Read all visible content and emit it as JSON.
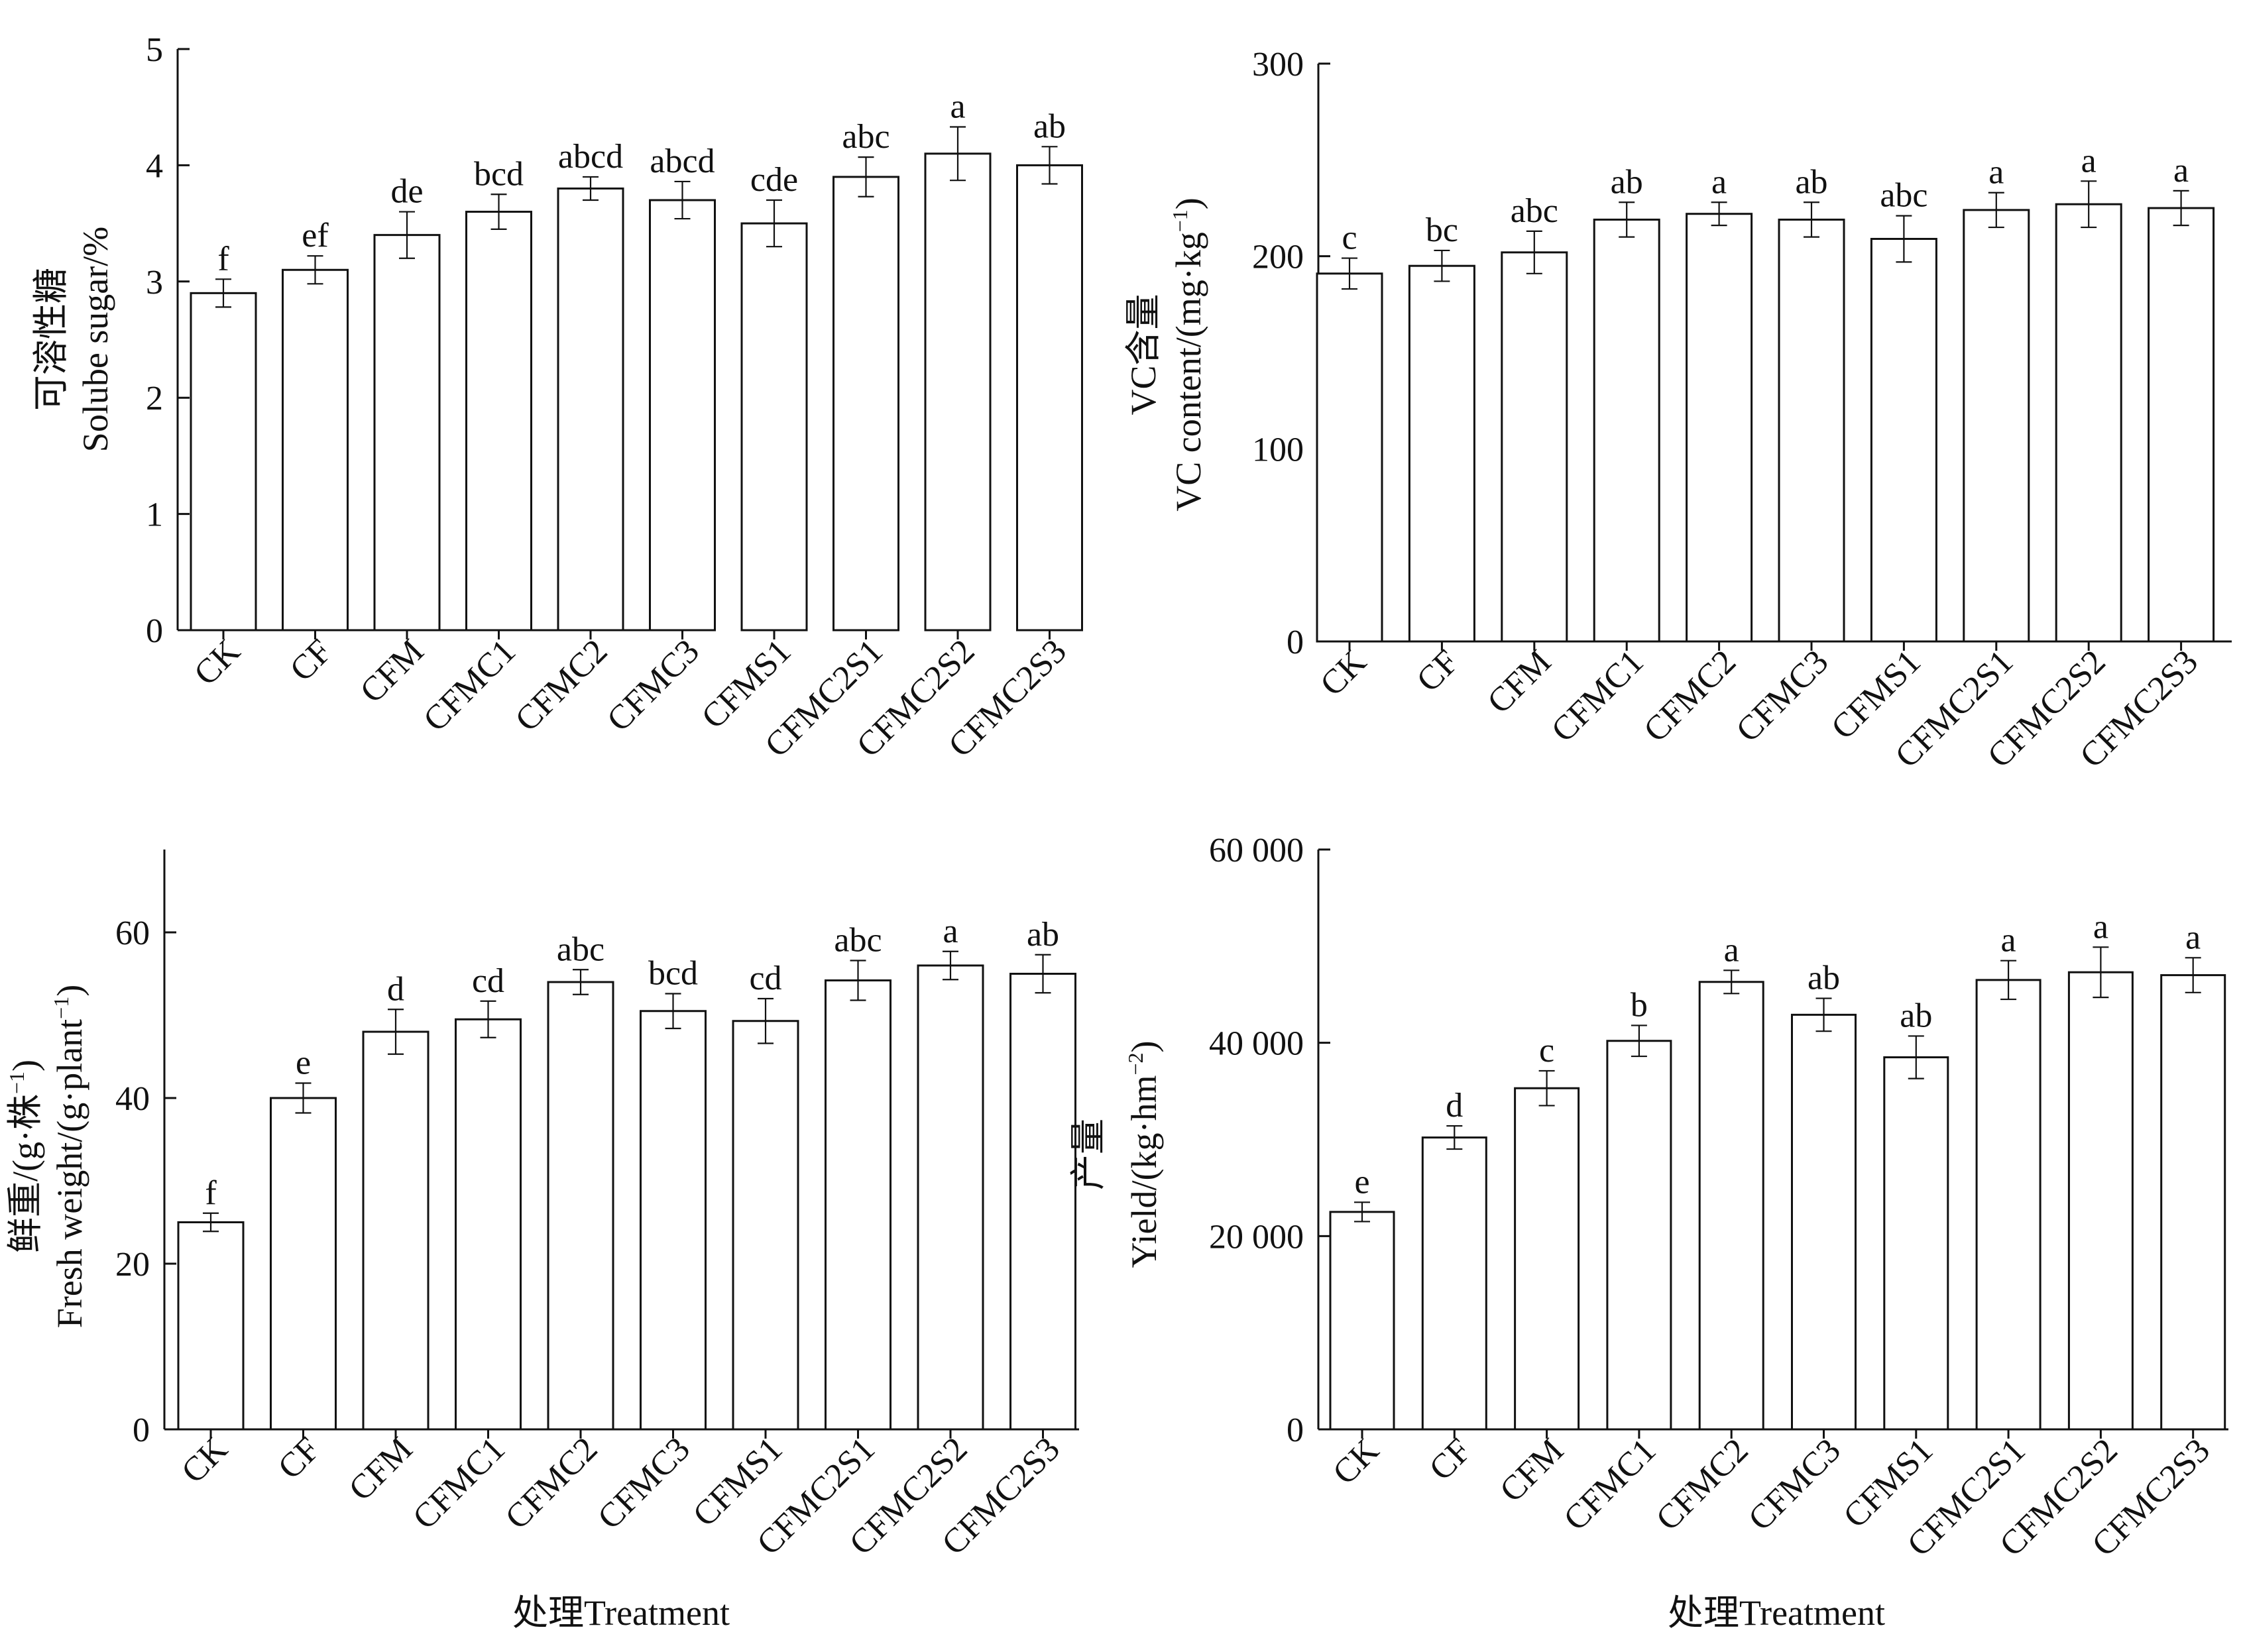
{
  "chart_data": [
    {
      "id": "soluble-sugar",
      "type": "bar",
      "categories": [
        "CK",
        "CF",
        "CFM",
        "CFMC1",
        "CFMC2",
        "CFMC3",
        "CFMS1",
        "CFMC2S1",
        "CFMC2S2",
        "CFMC2S3"
      ],
      "values": [
        2.9,
        3.1,
        3.4,
        3.6,
        3.8,
        3.7,
        3.5,
        3.9,
        4.1,
        4.0
      ],
      "errors": [
        0.12,
        0.12,
        0.2,
        0.15,
        0.1,
        0.16,
        0.2,
        0.17,
        0.23,
        0.16
      ],
      "letters": [
        "f",
        "ef",
        "de",
        "bcd",
        "abcd",
        "abcd",
        "cde",
        "abc",
        "a",
        "ab"
      ],
      "ylim": [
        0,
        5
      ],
      "yticks": [
        0,
        1,
        2,
        3,
        4,
        5
      ],
      "ytick_labels": [
        "0",
        "1",
        "2",
        "3",
        "4",
        "5"
      ],
      "ylabel_cn": "可溶性糖",
      "ylabel_en": "Solube sugar/%",
      "ylabel_sup": "",
      "ylabel_tail": "",
      "xlabel": ""
    },
    {
      "id": "vc-content",
      "type": "bar",
      "categories": [
        "CK",
        "CF",
        "CFM",
        "CFMC1",
        "CFMC2",
        "CFMC3",
        "CFMS1",
        "CFMC2S1",
        "CFMC2S2",
        "CFMC2S3"
      ],
      "values": [
        191,
        195,
        202,
        219,
        222,
        219,
        209,
        224,
        227,
        225
      ],
      "errors": [
        8,
        8,
        11,
        9,
        6,
        9,
        12,
        9,
        12,
        9
      ],
      "letters": [
        "c",
        "bc",
        "abc",
        "ab",
        "a",
        "ab",
        "abc",
        "a",
        "a",
        "a"
      ],
      "ylim": [
        0,
        300
      ],
      "yticks": [
        0,
        100,
        200,
        300
      ],
      "ytick_labels": [
        "0",
        "100",
        "200",
        "300"
      ],
      "ylabel_cn": "VC含量",
      "ylabel_en": "VC content/(mg·kg",
      "ylabel_sup": "−1",
      "ylabel_tail": ")",
      "xlabel": ""
    },
    {
      "id": "fresh-weight",
      "type": "bar",
      "categories": [
        "CK",
        "CF",
        "CFM",
        "CFMC1",
        "CFMC2",
        "CFMC3",
        "CFMS1",
        "CFMC2S1",
        "CFMC2S2",
        "CFMC2S3"
      ],
      "values": [
        25,
        40,
        48,
        49.5,
        54,
        50.5,
        49.3,
        54.2,
        56,
        55
      ],
      "errors": [
        1.1,
        1.8,
        2.7,
        2.2,
        1.5,
        2.1,
        2.7,
        2.4,
        1.7,
        2.3
      ],
      "letters": [
        "f",
        "e",
        "d",
        "cd",
        "abc",
        "bcd",
        "cd",
        "abc",
        "a",
        "ab"
      ],
      "ylim": [
        0,
        70
      ],
      "yticks": [
        0,
        20,
        40,
        60
      ],
      "ytick_labels": [
        "0",
        "20",
        "40",
        "60"
      ],
      "ylabel_cn": "鲜重/(g·株",
      "ylabel_cn_sup": "−1",
      "ylabel_cn_tail": ")",
      "ylabel_en": "Fresh weight/(g·plant",
      "ylabel_sup": "−1",
      "ylabel_tail": ")",
      "xlabel": "处理Treatment"
    },
    {
      "id": "yield",
      "type": "bar",
      "categories": [
        "CK",
        "CF",
        "CFM",
        "CFMC1",
        "CFMC2",
        "CFMC3",
        "CFMS1",
        "CFMC2S1",
        "CFMC2S2",
        "CFMC2S3"
      ],
      "values": [
        22500,
        30200,
        35300,
        40200,
        46300,
        42900,
        38500,
        46500,
        47300,
        47000
      ],
      "errors": [
        1000,
        1200,
        1800,
        1600,
        1200,
        1700,
        2200,
        2000,
        2600,
        1800
      ],
      "letters": [
        "e",
        "d",
        "c",
        "b",
        "a",
        "ab",
        "ab",
        "a",
        "a",
        "a"
      ],
      "ylim": [
        0,
        60000
      ],
      "yticks": [
        0,
        20000,
        40000,
        60000
      ],
      "ytick_labels": [
        "0",
        "20 000",
        "40 000",
        "60 000"
      ],
      "ylabel_cn": "产量",
      "ylabel_en": "Yield/(kg·hm",
      "ylabel_sup": "−2",
      "ylabel_tail": ")",
      "xlabel": "处理Treatment"
    }
  ]
}
